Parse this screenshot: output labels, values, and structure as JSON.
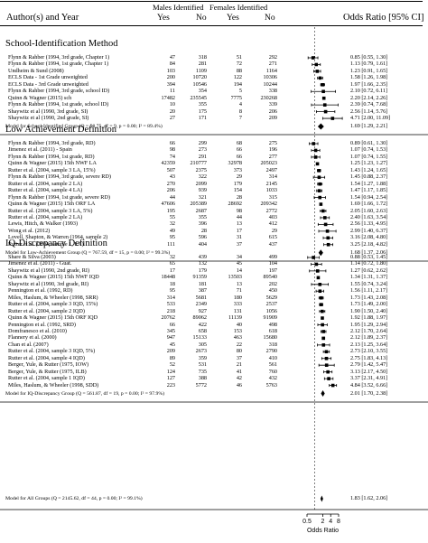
{
  "header": {
    "authors": "Author(s) and Year",
    "males": "Males Identified",
    "females": "Females Identified",
    "yes1": "Yes",
    "no1": "No",
    "yes2": "Yes",
    "no2": "No",
    "or_label": "Odds Ratio [95% CI]"
  },
  "chart_data": {
    "type": "forest",
    "xaxis": {
      "ticks": [
        0.5,
        2,
        4,
        8
      ],
      "tick_labels": [
        "0.5",
        "2",
        "4",
        "8"
      ],
      "label": "Odds Ratio",
      "scale": "log"
    },
    "sections": [
      {
        "title": "School-Identification Method",
        "studies": [
          {
            "study": "Flynn & Rahber (1994, 3rd grade, Chapter 1)",
            "m_yes": "47",
            "m_no": "318",
            "f_yes": "51",
            "f_no": "292",
            "or": 0.85,
            "lo": 0.55,
            "hi": 1.3,
            "ci": "0.85 [0.55, 1.30]"
          },
          {
            "study": "Flynn & Rahber (1994, 1st grade, Chapter 1)",
            "m_yes": "84",
            "m_no": "281",
            "f_yes": "72",
            "f_no": "271",
            "or": 1.13,
            "lo": 0.79,
            "hi": 1.61,
            "ci": "1.13 [0.79, 1.61]"
          },
          {
            "study": "Undheim & Sund (2008)",
            "m_yes": "103",
            "m_no": "1109",
            "f_yes": "88",
            "f_no": "1164",
            "or": 1.23,
            "lo": 0.91,
            "hi": 1.65,
            "ci": "1.23 [0.91, 1.65]"
          },
          {
            "study": "ECLS Data - 1st Grade unweighted",
            "m_yes": "200",
            "m_no": "10720",
            "f_yes": "122",
            "f_no": "10306",
            "or": 1.58,
            "lo": 1.26,
            "hi": 1.98,
            "ci": "1.58 [1.26, 1.98]"
          },
          {
            "study": "ECLS Data - 3rd Grade unweighted",
            "m_yes": "394",
            "m_no": "10546",
            "f_yes": "194",
            "f_no": "10244",
            "or": 1.97,
            "lo": 1.66,
            "hi": 2.35,
            "ci": "1.97 [1.66, 2.35]"
          },
          {
            "study": "Flynn & Rahber (1994, 3rd grade, school ID)",
            "m_yes": "11",
            "m_no": "354",
            "f_yes": "5",
            "f_no": "338",
            "or": 2.1,
            "lo": 0.72,
            "hi": 6.11,
            "ci": "2.10 [0.72, 6.11]"
          },
          {
            "study": "Quinn & Wagner (2015) sch",
            "m_yes": "17482",
            "m_no": "235545",
            "f_yes": "7775",
            "f_no": "230268",
            "or": 2.2,
            "lo": 2.14,
            "hi": 2.26,
            "ci": "2.20 [2.14, 2.26]"
          },
          {
            "study": "Flynn & Rahber (1994, 1st grade, school ID)",
            "m_yes": "10",
            "m_no": "355",
            "f_yes": "4",
            "f_no": "339",
            "or": 2.39,
            "lo": 0.74,
            "hi": 7.68,
            "ci": "2.39 [0.74, 7.68]"
          },
          {
            "study": "Shaywitz et al (1990, 3rd grade, SI)",
            "m_yes": "20",
            "m_no": "175",
            "f_yes": "8",
            "f_no": "206",
            "or": 2.56,
            "lo": 1.14,
            "hi": 5.76,
            "ci": "2.56 [1.14, 5.76]"
          },
          {
            "study": "Shaywitz et al (1990, 2nd grade, SI)",
            "m_yes": "27",
            "m_no": "171",
            "f_yes": "7",
            "f_no": "209",
            "or": 4.71,
            "lo": 2.0,
            "hi": 11.09,
            "ci": "4.71 [2.00, 11.09]"
          }
        ],
        "model": {
          "label": "Model for School-Identified Group (Q = 58.75, df = 9, p = 0.00; I² = 89.4%)",
          "or": 1.69,
          "lo": 1.29,
          "hi": 2.21,
          "ci": "1.69 [1.29, 2.21]"
        }
      },
      {
        "title": "Low Achievement Definition",
        "studies": [
          {
            "study": "Flynn & Rahber (1994, 3rd grade, RD)",
            "m_yes": "66",
            "m_no": "299",
            "f_yes": "68",
            "f_no": "275",
            "or": 0.89,
            "lo": 0.61,
            "hi": 1.3,
            "ci": "0.89 [0.61, 1.30]"
          },
          {
            "study": "Jimenez et al. (2011) - Spain",
            "m_yes": "98",
            "m_no": "273",
            "f_yes": "66",
            "f_no": "196",
            "or": 1.07,
            "lo": 0.74,
            "hi": 1.53,
            "ci": "1.07 [0.74, 1.53]"
          },
          {
            "study": "Flynn & Rahber (1994, 1st grade, RD)",
            "m_yes": "74",
            "m_no": "291",
            "f_yes": "66",
            "f_no": "277",
            "or": 1.07,
            "lo": 0.74,
            "hi": 1.55,
            "ci": "1.07 [0.74, 1.55]"
          },
          {
            "study": "Quinn & Wagner (2015) 15th NWF LA",
            "m_yes": "42359",
            "m_no": "210777",
            "f_yes": "32978",
            "f_no": "205023",
            "or": 1.25,
            "lo": 1.23,
            "hi": 1.27,
            "ci": "1.25 [1.23, 1.27]"
          },
          {
            "study": "Rutter et al. (2004, sample 3 LA, 15%)",
            "m_yes": "507",
            "m_no": "2375",
            "f_yes": "373",
            "f_no": "2497",
            "or": 1.43,
            "lo": 1.24,
            "hi": 1.65,
            "ci": "1.43 [1.24, 1.65]"
          },
          {
            "study": "Flynn & Rahber (1994, 3rd grade, severe RD)",
            "m_yes": "43",
            "m_no": "322",
            "f_yes": "29",
            "f_no": "314",
            "or": 1.45,
            "lo": 0.88,
            "hi": 2.37,
            "ci": "1.45 [0.88, 2.37]"
          },
          {
            "study": "Rutter et al. (2004, sample 2 LA)",
            "m_yes": "270",
            "m_no": "2099",
            "f_yes": "179",
            "f_no": "2145",
            "or": 1.54,
            "lo": 1.27,
            "hi": 1.88,
            "ci": "1.54 [1.27, 1.88]"
          },
          {
            "study": "Rutter et al. (2004, sample 4 LA)",
            "m_yes": "206",
            "m_no": "939",
            "f_yes": "154",
            "f_no": "1033",
            "or": 1.47,
            "lo": 1.17,
            "hi": 1.85,
            "ci": "1.47 [1.17, 1.85]"
          },
          {
            "study": "Flynn & Rahber (1994, 1st grade, severe RD)",
            "m_yes": "44",
            "m_no": "321",
            "f_yes": "28",
            "f_no": "315",
            "or": 1.54,
            "lo": 0.94,
            "hi": 2.54,
            "ci": "1.54 [0.94, 2.54]"
          },
          {
            "study": "Quinn & Wagner (2015) 15th ORF LA",
            "m_yes": "47606",
            "m_no": "205389",
            "f_yes": "28692",
            "f_no": "209342",
            "or": 1.69,
            "lo": 1.66,
            "hi": 1.72,
            "ci": "1.69 [1.66, 1.72]"
          },
          {
            "study": "Rutter et al. (2004, sample 3 LA, 5%)",
            "m_yes": "195",
            "m_no": "2687",
            "f_yes": "98",
            "f_no": "2772",
            "or": 2.05,
            "lo": 1.6,
            "hi": 2.63,
            "ci": "2.05 [1.60, 2.63]"
          },
          {
            "study": "Rutter et al. (2004, sample 2 LA)",
            "m_yes": "55",
            "m_no": "355",
            "f_yes": "44",
            "f_no": "403",
            "or": 2.4,
            "lo": 1.63,
            "hi": 3.54,
            "ci": "2.40 [1.63, 3.54]"
          },
          {
            "study": "Lewis, Hitch, & Walker (1993)",
            "m_yes": "32",
            "m_no": "396",
            "f_yes": "13",
            "f_no": "412",
            "or": 2.56,
            "lo": 1.33,
            "hi": 4.95,
            "ci": "2.56 [1.33, 4.95]"
          },
          {
            "study": "Wong et al. (2012)",
            "m_yes": "49",
            "m_no": "28",
            "f_yes": "17",
            "f_no": "29",
            "or": 2.99,
            "lo": 1.4,
            "hi": 6.37,
            "ci": "2.99 [1.40, 6.37]"
          },
          {
            "study": "Lovell, Shapton, & Warren (1964, sample 2)",
            "m_yes": "95",
            "m_no": "596",
            "f_yes": "31",
            "f_no": "615",
            "or": 3.16,
            "lo": 2.08,
            "hi": 4.8,
            "ci": "3.16 [2.08, 4.80]"
          },
          {
            "study": "Rutter et al. (2004, sample 1, LA)",
            "m_yes": "111",
            "m_no": "404",
            "f_yes": "37",
            "f_no": "437",
            "or": 3.25,
            "lo": 2.18,
            "hi": 4.82,
            "ci": "3.25 [2.18, 4.82]"
          }
        ],
        "model": {
          "label": "Model for Low-Achievement Group (Q = 767.59, df = 15, p = 0.00; I² = 99.3%)",
          "or": 1.68,
          "lo": 1.37,
          "hi": 2.06,
          "ci": "1.68 [1.37, 2.06]"
        }
      },
      {
        "title": "IQ-Discrepancy Definition",
        "studies": [
          {
            "study": "Share & Silva (2003)",
            "m_yes": "32",
            "m_no": "439",
            "f_yes": "34",
            "f_no": "499",
            "or": 0.88,
            "lo": 0.53,
            "hi": 1.45,
            "ci": "0.88 [0.53, 1.45]"
          },
          {
            "study": "Jimenez et al. (2011) - Guat.",
            "m_yes": "65",
            "m_no": "132",
            "f_yes": "45",
            "f_no": "104",
            "or": 1.14,
            "lo": 0.72,
            "hi": 1.8,
            "ci": "1.14 [0.72, 1.80]"
          },
          {
            "study": "Shaywitz et al (1990, 2nd grade, RI)",
            "m_yes": "17",
            "m_no": "179",
            "f_yes": "14",
            "f_no": "197",
            "or": 1.27,
            "lo": 0.62,
            "hi": 2.62,
            "ci": "1.27 [0.62, 2.62]"
          },
          {
            "study": "Quinn & Wagner (2015) 15th NWF IQD",
            "m_yes": "18448",
            "m_no": "91359",
            "f_yes": "13503",
            "f_no": "89540",
            "or": 1.34,
            "lo": 1.31,
            "hi": 1.37,
            "ci": "1.34 [1.31, 1.37]"
          },
          {
            "study": "Shaywitz et al (1990, 3rd grade, RI)",
            "m_yes": "18",
            "m_no": "181",
            "f_yes": "13",
            "f_no": "202",
            "or": 1.55,
            "lo": 0.74,
            "hi": 3.24,
            "ci": "1.55 [0.74, 3.24]"
          },
          {
            "study": "Pennington et al. (1992, RD)",
            "m_yes": "95",
            "m_no": "387",
            "f_yes": "71",
            "f_no": "450",
            "or": 1.56,
            "lo": 1.11,
            "hi": 2.17,
            "ci": "1.56 [1.11, 2.17]"
          },
          {
            "study": "Miles, Haslum, & Wheeler (1998, SRR)",
            "m_yes": "314",
            "m_no": "5681",
            "f_yes": "180",
            "f_no": "5629",
            "or": 1.73,
            "lo": 1.43,
            "hi": 2.08,
            "ci": "1.73 [1.43, 2.08]"
          },
          {
            "study": "Rutter et al. (2004, sample 3 IQD, 15%)",
            "m_yes": "533",
            "m_no": "2349",
            "f_yes": "333",
            "f_no": "2537",
            "or": 1.73,
            "lo": 1.49,
            "hi": 2.0,
            "ci": "1.73 [1.49, 2.00]"
          },
          {
            "study": "Rutter et al. (2004, sample 2 IQD)",
            "m_yes": "218",
            "m_no": "927",
            "f_yes": "131",
            "f_no": "1056",
            "or": 1.9,
            "lo": 1.5,
            "hi": 2.4,
            "ci": "1.90 [1.50, 2.40]"
          },
          {
            "study": "Quinn & Wagner (2015) 15th ORF IQD",
            "m_yes": "20762",
            "m_no": "89062",
            "f_yes": "11139",
            "f_no": "91909",
            "or": 1.92,
            "lo": 1.88,
            "hi": 1.97,
            "ci": "1.92 [1.88, 1.97]"
          },
          {
            "study": "Pennington et al. (1992, SRD)",
            "m_yes": "66",
            "m_no": "422",
            "f_yes": "40",
            "f_no": "498",
            "or": 1.95,
            "lo": 1.29,
            "hi": 2.94,
            "ci": "1.95 [1.29, 2.94]"
          },
          {
            "study": "Domfranesco et al. (2010)",
            "m_yes": "345",
            "m_no": "658",
            "f_yes": "153",
            "f_no": "618",
            "or": 2.12,
            "lo": 1.7,
            "hi": 2.64,
            "ci": "2.12 [1.70, 2.64]"
          },
          {
            "study": "Flannery et al. (2000)",
            "m_yes": "947",
            "m_no": "15133",
            "f_yes": "463",
            "f_no": "15680",
            "or": 2.12,
            "lo": 1.89,
            "hi": 2.37,
            "ci": "2.12 [1.89, 2.37]"
          },
          {
            "study": "Chan et al. (2007)",
            "m_yes": "45",
            "m_no": "305",
            "f_yes": "22",
            "f_no": "318",
            "or": 2.13,
            "lo": 1.25,
            "hi": 3.64,
            "ci": "2.13 [1.25, 3.64]"
          },
          {
            "study": "Rutter et al. (2004, sample 3 IQD, 5%)",
            "m_yes": "209",
            "m_no": "2673",
            "f_yes": "80",
            "f_no": "2790",
            "or": 2.73,
            "lo": 2.1,
            "hi": 3.55,
            "ci": "2.73 [2.10, 3.55]"
          },
          {
            "study": "Rutter et al. (2004, sample 4 IQD)",
            "m_yes": "89",
            "m_no": "359",
            "f_yes": "37",
            "f_no": "410",
            "or": 2.75,
            "lo": 1.83,
            "hi": 4.13,
            "ci": "2.75 [1.83, 4.13]"
          },
          {
            "study": "Berger, Yule, & Rutter (1975, IOW)",
            "m_yes": "52",
            "m_no": "531",
            "f_yes": "21",
            "f_no": "561",
            "or": 2.79,
            "lo": 1.42,
            "hi": 5.47,
            "ci": "2.79 [1.42, 5.47]"
          },
          {
            "study": "Berger, Yule, & Rutter (1975, ILB)",
            "m_yes": "124",
            "m_no": "735",
            "f_yes": "41",
            "f_no": "760",
            "or": 3.13,
            "lo": 2.17,
            "hi": 4.5,
            "ci": "3.13 [2.17, 4.50]"
          },
          {
            "study": "Rutter et al. (2004, sample 1 IQD)",
            "m_yes": "127",
            "m_no": "388",
            "f_yes": "42",
            "f_no": "432",
            "or": 3.37,
            "lo": 2.31,
            "hi": 4.91,
            "ci": "3.37 [2.31, 4.91]"
          },
          {
            "study": "Miles, Haslum, & Wheeler (1998, SDD)",
            "m_yes": "223",
            "m_no": "5772",
            "f_yes": "46",
            "f_no": "5763",
            "or": 4.84,
            "lo": 3.52,
            "hi": 6.66,
            "ci": "4.84 [3.52, 6.66]"
          }
        ],
        "model": {
          "label": "Model for IQ-Discrepancy Group (Q = 561.87, df = 19, p = 0.00; I² = 97.9%)",
          "or": 2.01,
          "lo": 1.7,
          "hi": 2.38,
          "ci": "2.01 [1.70, 2.38]"
        }
      }
    ],
    "overall": {
      "label": "Model for All Groups (Q = 2145.62, df = 44, p = 0.00; I² = 99.1%)",
      "or": 1.83,
      "lo": 1.62,
      "hi": 2.06,
      "ci": "1.83 [1.62, 2.06]"
    }
  }
}
